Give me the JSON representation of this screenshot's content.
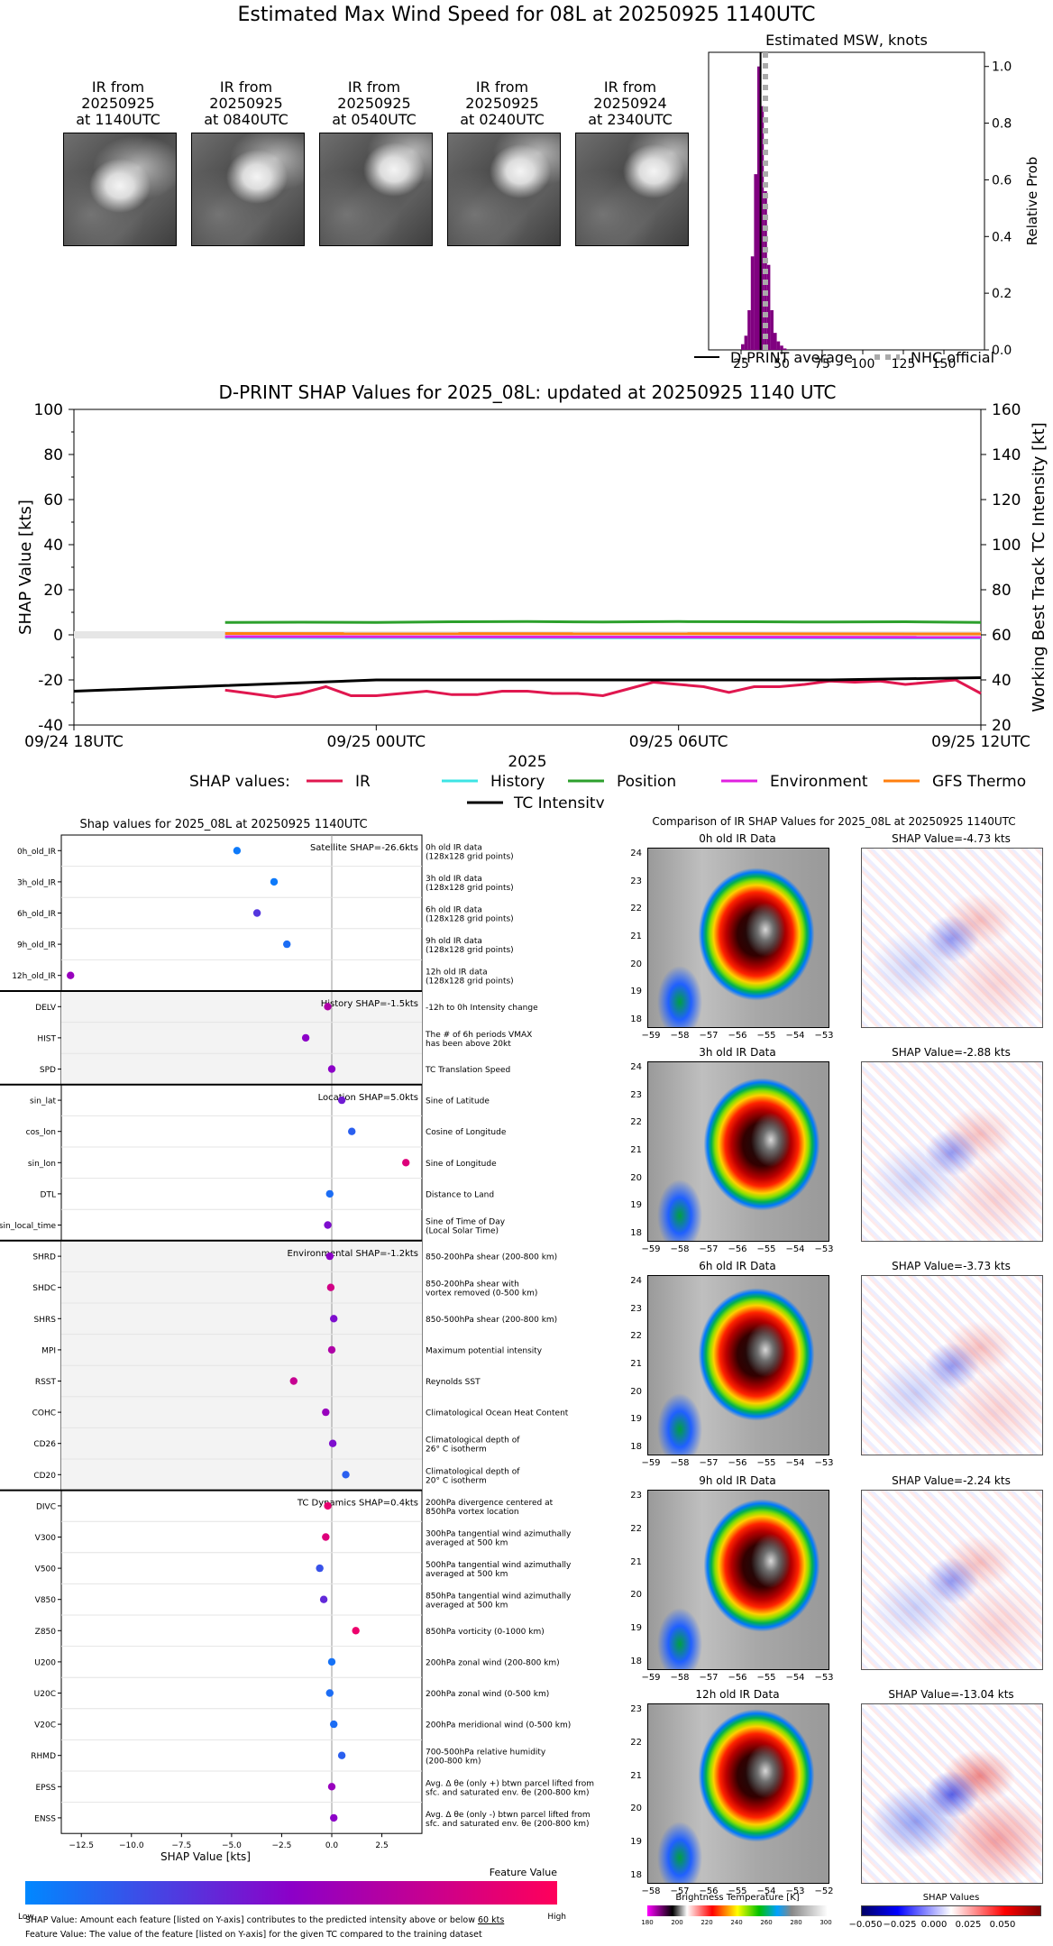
{
  "main_title": "Estimated Max Wind Speed for 08L at 20250925 1140UTC",
  "ir_thumbnails": [
    {
      "line1": "IR from",
      "line2": "20250925",
      "line3": "at 1140UTC"
    },
    {
      "line1": "IR from",
      "line2": "20250925",
      "line3": "at 0840UTC"
    },
    {
      "line1": "IR from",
      "line2": "20250925",
      "line3": "at 0540UTC"
    },
    {
      "line1": "IR from",
      "line2": "20250925",
      "line3": "at 0240UTC"
    },
    {
      "line1": "IR from",
      "line2": "20250924",
      "line3": "at 2340UTC"
    }
  ],
  "chart_data": [
    {
      "type": "bar",
      "title": "Estimated MSW, knots",
      "ylabel": "Relative Prob",
      "xlim": [
        5,
        175
      ],
      "ylim": [
        0,
        1.05
      ],
      "xticks": [
        25,
        50,
        75,
        100,
        125,
        150
      ],
      "yticks": [
        0.0,
        0.2,
        0.4,
        0.6,
        0.8,
        1.0
      ],
      "color": "#800080",
      "bins": [
        {
          "x": 26,
          "v": 0.02
        },
        {
          "x": 28,
          "v": 0.05
        },
        {
          "x": 30,
          "v": 0.14
        },
        {
          "x": 32,
          "v": 0.33
        },
        {
          "x": 34,
          "v": 0.62
        },
        {
          "x": 36,
          "v": 1.0
        },
        {
          "x": 38,
          "v": 0.86
        },
        {
          "x": 40,
          "v": 0.56
        },
        {
          "x": 42,
          "v": 0.3
        },
        {
          "x": 44,
          "v": 0.14
        },
        {
          "x": 46,
          "v": 0.06
        },
        {
          "x": 48,
          "v": 0.03
        },
        {
          "x": 50,
          "v": 0.015
        },
        {
          "x": 52,
          "v": 0.005
        }
      ],
      "dprint_average": 37,
      "nhc_official": 40,
      "legend": [
        {
          "label": "D-PRINT average",
          "style": "solid",
          "color": "#000000"
        },
        {
          "label": "NHC official",
          "style": "dotted",
          "color": "#aaaaaa"
        }
      ]
    },
    {
      "type": "line",
      "title": "D-PRINT SHAP Values for 2025_08L: updated at 20250925 1140 UTC",
      "ylabel": "SHAP Value [kts]",
      "y2label": "Working Best Track TC Intensity [kt]",
      "xlabel": "2025",
      "xticks": [
        "09/24 18UTC",
        "09/25 00UTC",
        "09/25 06UTC",
        "09/25 12UTC"
      ],
      "x_hours": [
        0,
        6,
        12,
        18
      ],
      "xlim": [
        0,
        18
      ],
      "ylim": [
        -40,
        100
      ],
      "yticks": [
        -40,
        -20,
        0,
        20,
        40,
        60,
        80,
        100
      ],
      "y2lim": [
        20,
        160
      ],
      "y2ticks": [
        20,
        40,
        60,
        80,
        100,
        120,
        140,
        160
      ],
      "legend_prefix": "SHAP values:",
      "series": [
        {
          "name": "IR",
          "color": "#e0174f",
          "axis": "left",
          "x": [
            3,
            3.5,
            4,
            4.5,
            5,
            5.5,
            6,
            6.5,
            7,
            7.5,
            8,
            8.5,
            9,
            9.5,
            10,
            10.5,
            11,
            11.5,
            12,
            12.5,
            13,
            13.5,
            14,
            14.5,
            15,
            15.5,
            16,
            16.5,
            17,
            17.5,
            18
          ],
          "y": [
            -24.5,
            -26,
            -27.5,
            -26,
            -23,
            -27,
            -27,
            -26,
            -25,
            -26.5,
            -26.5,
            -25,
            -25,
            -26,
            -26,
            -27,
            -24,
            -21,
            -22,
            -23,
            -25.5,
            -23,
            -23,
            -22,
            -20.5,
            -21,
            -20.5,
            -22,
            -21,
            -20,
            -26
          ]
        },
        {
          "name": "History",
          "color": "#3de4e4",
          "axis": "left",
          "x": [
            3,
            18
          ],
          "y": [
            -1.2,
            -1.4
          ]
        },
        {
          "name": "Position",
          "color": "#2ca02c",
          "axis": "left",
          "x": [
            3,
            4.5,
            6,
            7.5,
            9,
            10.5,
            12,
            13.5,
            15,
            16.5,
            18
          ],
          "y": [
            5.5,
            5.6,
            5.5,
            5.8,
            5.9,
            5.7,
            5.9,
            5.8,
            5.7,
            5.8,
            5.5
          ]
        },
        {
          "name": "Environment",
          "color": "#e020e0",
          "axis": "left",
          "x": [
            3,
            18
          ],
          "y": [
            -0.8,
            -1.1
          ]
        },
        {
          "name": "GFS Thermo",
          "color": "#ff7f0e",
          "axis": "left",
          "x": [
            3,
            18
          ],
          "y": [
            0.6,
            0.4
          ]
        },
        {
          "name": "TC Intensity",
          "color": "#000000",
          "axis": "right",
          "x": [
            0,
            3,
            6,
            9,
            12,
            15,
            18
          ],
          "y": [
            35,
            37.5,
            40,
            40,
            40,
            40,
            41
          ]
        }
      ]
    },
    {
      "type": "scatter",
      "title": "Shap values for 2025_08L at 20250925 1140UTC",
      "xlabel": "SHAP Value [kts]",
      "xlim": [
        -13.5,
        4.5
      ],
      "xticks": [
        -12.5,
        -10.0,
        -7.5,
        -5.0,
        -2.5,
        0.0,
        2.5
      ],
      "colorbar_title": "Feature Value",
      "colorbar_low": "Low",
      "colorbar_high": "High",
      "groups": [
        {
          "title": "Satellite SHAP=-26.6kts",
          "shaded": false,
          "features": [
            {
              "name": "0h_old_IR",
              "desc1": "0h old IR data",
              "desc2": "(128x128 grid points)",
              "shap": -4.73,
              "fv": 0.05
            },
            {
              "name": "3h_old_IR",
              "desc1": "3h old IR data",
              "desc2": "(128x128 grid points)",
              "shap": -2.88,
              "fv": 0.05
            },
            {
              "name": "6h_old_IR",
              "desc1": "6h old IR data",
              "desc2": "(128x128 grid points)",
              "shap": -3.73,
              "fv": 0.3
            },
            {
              "name": "9h_old_IR",
              "desc1": "9h old IR data",
              "desc2": "(128x128 grid points)",
              "shap": -2.24,
              "fv": 0.1
            },
            {
              "name": "12h_old_IR",
              "desc1": "12h old IR data",
              "desc2": "(128x128 grid points)",
              "shap": -13.04,
              "fv": 0.55
            }
          ]
        },
        {
          "title": "History SHAP=-1.5kts",
          "shaded": true,
          "features": [
            {
              "name": "DELV",
              "desc1": "-12h to 0h Intensity change",
              "desc2": "",
              "shap": -0.2,
              "fv": 0.65
            },
            {
              "name": "HIST",
              "desc1": "The # of 6h periods VMAX",
              "desc2": "has been above 20kt",
              "shap": -1.3,
              "fv": 0.5
            },
            {
              "name": "SPD",
              "desc1": "TC Translation Speed",
              "desc2": "",
              "shap": 0.0,
              "fv": 0.5
            }
          ]
        },
        {
          "title": "Location SHAP=5.0kts",
          "shaded": false,
          "features": [
            {
              "name": "sin_lat",
              "desc1": "Sine of Latitude",
              "desc2": "",
              "shap": 0.5,
              "fv": 0.4
            },
            {
              "name": "cos_lon",
              "desc1": "Cosine of Longitude",
              "desc2": "",
              "shap": 1.0,
              "fv": 0.15
            },
            {
              "name": "sin_lon",
              "desc1": "Sine of Longitude",
              "desc2": "",
              "shap": 3.7,
              "fv": 0.85
            },
            {
              "name": "DTL",
              "desc1": "Distance to Land",
              "desc2": "",
              "shap": -0.1,
              "fv": 0.1
            },
            {
              "name": "sin_local_time",
              "desc1": "Sine of Time of Day",
              "desc2": "(Local Solar Time)",
              "shap": -0.2,
              "fv": 0.45
            }
          ]
        },
        {
          "title": "Environmental SHAP=-1.2kts",
          "shaded": true,
          "features": [
            {
              "name": "SHRD",
              "desc1": "850-200hPa shear (200-800 km)",
              "desc2": "",
              "shap": -0.1,
              "fv": 0.5
            },
            {
              "name": "SHDC",
              "desc1": "850-200hPa shear with",
              "desc2": "vortex removed (0-500 km)",
              "shap": -0.05,
              "fv": 0.8
            },
            {
              "name": "SHRS",
              "desc1": "850-500hPa shear (200-800 km)",
              "desc2": "",
              "shap": 0.1,
              "fv": 0.45
            },
            {
              "name": "MPI",
              "desc1": "Maximum potential intensity",
              "desc2": "",
              "shap": 0.0,
              "fv": 0.65
            },
            {
              "name": "RSST",
              "desc1": "Reynolds SST",
              "desc2": "",
              "shap": -1.9,
              "fv": 0.75
            },
            {
              "name": "COHC",
              "desc1": "Climatological Ocean Heat Content",
              "desc2": "",
              "shap": -0.3,
              "fv": 0.55
            },
            {
              "name": "CD26",
              "desc1": "Climatological depth of",
              "desc2": "26° C isotherm",
              "shap": 0.05,
              "fv": 0.45
            },
            {
              "name": "CD20",
              "desc1": "Climatological depth of",
              "desc2": "20° C isotherm",
              "shap": 0.7,
              "fv": 0.15
            }
          ]
        },
        {
          "title": "TC Dynamics SHAP=0.4kts",
          "shaded": false,
          "features": [
            {
              "name": "DIVC",
              "desc1": "200hPa divergence centered at",
              "desc2": "850hPa vortex location",
              "shap": -0.2,
              "fv": 0.9
            },
            {
              "name": "V300",
              "desc1": "300hPa tangential wind azimuthally",
              "desc2": "averaged at 500 km",
              "shap": -0.3,
              "fv": 0.85
            },
            {
              "name": "V500",
              "desc1": "500hPa tangential wind azimuthally",
              "desc2": "averaged at 500 km",
              "shap": -0.6,
              "fv": 0.2
            },
            {
              "name": "V850",
              "desc1": "850hPa tangential wind azimuthally",
              "desc2": "averaged at 500 km",
              "shap": -0.4,
              "fv": 0.35
            },
            {
              "name": "Z850",
              "desc1": "850hPa vorticity (0-1000 km)",
              "desc2": "",
              "shap": 1.2,
              "fv": 0.92
            },
            {
              "name": "U200",
              "desc1": "200hPa zonal wind (200-800 km)",
              "desc2": "",
              "shap": 0.0,
              "fv": 0.08
            },
            {
              "name": "U20C",
              "desc1": "200hPa zonal wind (0-500 km)",
              "desc2": "",
              "shap": -0.1,
              "fv": 0.1
            },
            {
              "name": "V20C",
              "desc1": "200hPa meridional wind (0-500 km)",
              "desc2": "",
              "shap": 0.1,
              "fv": 0.1
            },
            {
              "name": "RHMD",
              "desc1": "700-500hPa relative humidity",
              "desc2": "(200-800 km)",
              "shap": 0.5,
              "fv": 0.15
            },
            {
              "name": "EPSS",
              "desc1": "Avg. Δ θe (only +) btwn parcel lifted from",
              "desc2": "sfc. and saturated env. θe (200-800 km)",
              "shap": 0.0,
              "fv": 0.55
            },
            {
              "name": "ENSS",
              "desc1": "Avg. Δ θe (only -) btwn parcel lifted from",
              "desc2": "sfc. and saturated env. θe (200-800 km)",
              "shap": 0.1,
              "fv": 0.5
            }
          ]
        }
      ]
    }
  ],
  "comparison": {
    "title": "Comparison of IR SHAP Values for 2025_08L at 20250925 1140UTC",
    "panels": [
      {
        "ir_title": "0h old IR Data",
        "shap_title": "SHAP Value=-4.73 kts",
        "yticks": [
          "24",
          "23",
          "22",
          "21",
          "20",
          "19",
          "18"
        ],
        "xticks": [
          "−59",
          "−58",
          "−57",
          "−56",
          "−55",
          "−54",
          "−53"
        ]
      },
      {
        "ir_title": "3h old IR Data",
        "shap_title": "SHAP Value=-2.88 kts",
        "yticks": [
          "24",
          "23",
          "22",
          "21",
          "20",
          "19",
          "18"
        ],
        "xticks": [
          "−59",
          "−58",
          "−57",
          "−56",
          "−55",
          "−54",
          "−53"
        ]
      },
      {
        "ir_title": "6h old IR Data",
        "shap_title": "SHAP Value=-3.73 kts",
        "yticks": [
          "24",
          "23",
          "22",
          "21",
          "20",
          "19",
          "18"
        ],
        "xticks": [
          "−59",
          "−58",
          "−57",
          "−56",
          "−55",
          "−54",
          "−53"
        ]
      },
      {
        "ir_title": "9h old IR Data",
        "shap_title": "SHAP Value=-2.24 kts",
        "yticks": [
          "23",
          "22",
          "21",
          "20",
          "19",
          "18"
        ],
        "xticks": [
          "−59",
          "−58",
          "−57",
          "−56",
          "−55",
          "−54",
          "−53"
        ]
      },
      {
        "ir_title": "12h old IR Data",
        "shap_title": "SHAP Value=-13.04 kts",
        "yticks": [
          "23",
          "22",
          "21",
          "20",
          "19",
          "18"
        ],
        "xticks": [
          "−58",
          "−57",
          "−56",
          "−55",
          "−54",
          "−53",
          "−52"
        ]
      }
    ],
    "bt_colorbar_title": "Brightness Temperature [K]",
    "bt_ticks": [
      "180",
      "200",
      "220",
      "240",
      "260",
      "280",
      "300"
    ],
    "shap_colorbar_title": "SHAP Values",
    "shap_ticks": [
      "−0.050",
      "−0.025",
      "0.000",
      "0.025",
      "0.050"
    ]
  },
  "footnotes": {
    "line1_pre": "SHAP Value: Amount each feature [listed on Y-axis] contributes to the predicted intensity above or below ",
    "line1_link": "60 kts",
    "line2": "Feature Value: The value of the feature [listed on Y-axis] for the given TC compared to the training dataset"
  }
}
